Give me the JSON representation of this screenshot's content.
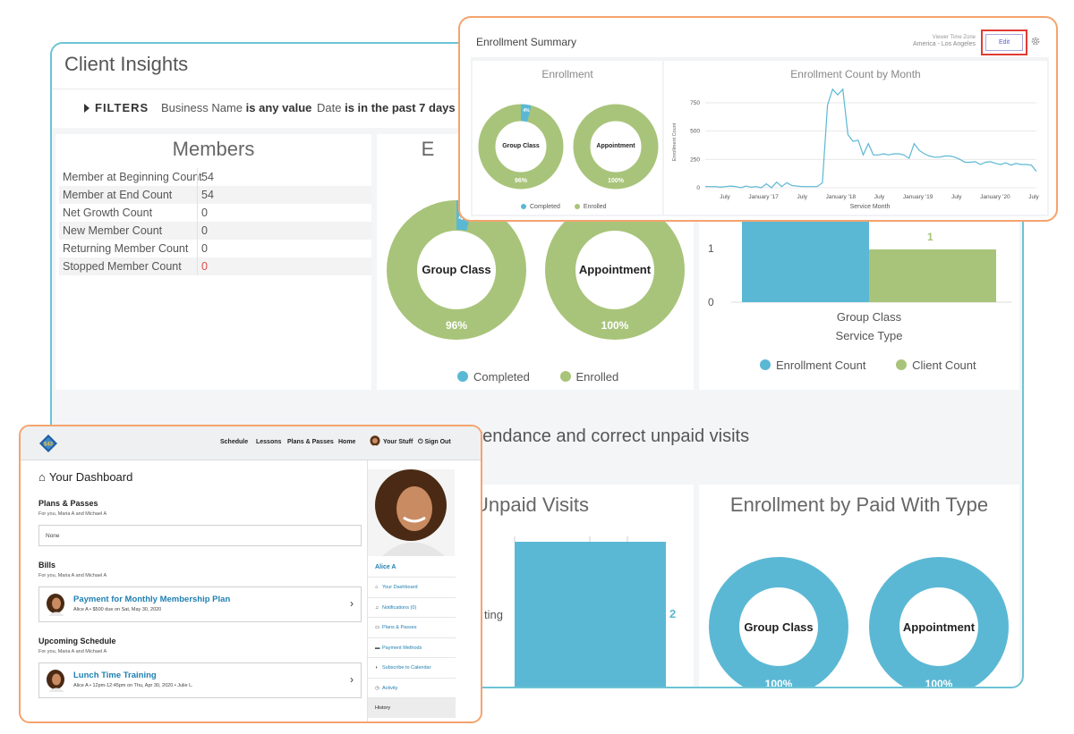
{
  "insights": {
    "title": "Client Insights",
    "filters": {
      "label": "FILTERS",
      "items": [
        {
          "field": "Business Name",
          "condition": "is any value"
        },
        {
          "field": "Date",
          "condition": "is in the past 7 days"
        }
      ]
    },
    "members": {
      "title": "Members",
      "rows": [
        {
          "label": "Member at Beginning Count",
          "value": "54"
        },
        {
          "label": "Member at End Count",
          "value": "54"
        },
        {
          "label": "Net Growth Count",
          "value": "0"
        },
        {
          "label": "New Member Count",
          "value": "0"
        },
        {
          "label": "Returning Member Count",
          "value": "0"
        },
        {
          "label": "Stopped Member Count",
          "value": "0"
        }
      ]
    },
    "enrollment_tile": {
      "title_fragment": "E",
      "donuts": [
        {
          "label": "Group Class",
          "percent": "96%",
          "slice_label": "4"
        },
        {
          "label": "Appointment",
          "percent": "100%"
        }
      ],
      "legend": [
        "Completed",
        "Enrolled"
      ]
    },
    "bar_tile": {
      "y_ticks": [
        "1",
        "0"
      ],
      "bar_label": "1",
      "category": "Group Class",
      "xlabel": "Service Type",
      "legend": [
        "Enrollment Count",
        "Client Count"
      ]
    },
    "band_text": "ttendance and correct unpaid visits",
    "unpaid": {
      "title": "Unpaid Visits",
      "row_fragment": "ting",
      "value_label": "2"
    },
    "paid_with": {
      "title": "Enrollment by Paid With Type",
      "donuts": [
        {
          "label": "Group Class",
          "percent": "100%"
        },
        {
          "label": "Appointment",
          "percent": "100%"
        }
      ]
    }
  },
  "enrollment_summary": {
    "title": "Enrollment Summary",
    "timezone_label": "Viewer Time Zone",
    "timezone_value": "America - Los Angeles",
    "edit_label": "Edit",
    "enrollment": {
      "title": "Enrollment",
      "donuts": [
        {
          "label": "Group Class",
          "percent": "96%",
          "slice_label": "4%"
        },
        {
          "label": "Appointment",
          "percent": "100%"
        }
      ],
      "legend": [
        "Completed",
        "Enrolled"
      ]
    },
    "by_month": {
      "title": "Enrollment Count by Month",
      "ylabel": "Enrollment Count",
      "xlabel": "Service Month"
    }
  },
  "dashboard": {
    "nav": [
      "Schedule",
      "Lessons",
      "Plans & Passes",
      "Home",
      "Your Stuff",
      "Sign Out"
    ],
    "title": "Your Dashboard",
    "plans": {
      "title": "Plans & Passes",
      "subtitle": "For you, Maria A and Michael A",
      "value": "None"
    },
    "bills": {
      "title": "Bills",
      "subtitle": "For you, Maria A and Michael A",
      "card_title": "Payment for Monthly Membership Plan",
      "card_sub": "Alice A • $500 due on Sat, May 30, 2020"
    },
    "schedule": {
      "title": "Upcoming Schedule",
      "subtitle": "For you, Maria A and Michael A",
      "card_title": "Lunch Time Training",
      "card_sub": "Alice A • 12pm-12:45pm on Thu, Apr 30, 2020 • Julie L."
    },
    "user_name": "Alice A",
    "menu": [
      "Your Dashboard",
      "Notifications (0)",
      "Plans & Passes",
      "Payment Methods",
      "Subscribe to Calendar",
      "Activity",
      "History"
    ]
  },
  "colors": {
    "completed": "#5bb8d4",
    "enrolled": "#a8c47a",
    "accent_border": "#f5a36e",
    "insights_border": "#6cc3d5",
    "edit_highlight": "#e03c31"
  },
  "chart_data": [
    {
      "type": "line",
      "title": "Enrollment Count by Month",
      "xlabel": "Service Month",
      "ylabel": "Enrollment Count",
      "x_ticks": [
        "July",
        "January '17",
        "July",
        "January '18",
        "July",
        "January '19",
        "July",
        "January '20",
        "July"
      ],
      "y_ticks": [
        0,
        250,
        500,
        750
      ],
      "ylim": [
        0,
        900
      ],
      "grid": true,
      "series": [
        {
          "values": [
            10,
            10,
            10,
            5,
            10,
            15,
            10,
            0,
            15,
            5,
            10,
            0,
            35,
            0,
            50,
            10,
            45,
            20,
            15,
            10,
            10,
            10,
            10,
            45,
            730,
            870,
            820,
            870,
            470,
            410,
            420,
            290,
            390,
            290,
            290,
            300,
            290,
            300,
            300,
            290,
            260,
            390,
            330,
            300,
            280,
            270,
            270,
            280,
            280,
            270,
            250,
            225,
            225,
            230,
            205,
            225,
            230,
            215,
            205,
            220,
            200,
            215,
            205,
            205,
            200,
            145
          ]
        }
      ]
    },
    {
      "type": "pie",
      "title": "Enrollment",
      "labels": [
        "Completed",
        "Enrolled"
      ],
      "charts": [
        {
          "name": "Group Class",
          "values": [
            4,
            96
          ]
        },
        {
          "name": "Appointment",
          "values": [
            0,
            100
          ]
        }
      ]
    },
    {
      "type": "bar",
      "categories": [
        "Group Class"
      ],
      "xlabel": "Service Type",
      "series": [
        {
          "name": "Enrollment Count",
          "values": [
            1
          ]
        },
        {
          "name": "Client Count",
          "values": [
            1
          ]
        }
      ]
    }
  ]
}
